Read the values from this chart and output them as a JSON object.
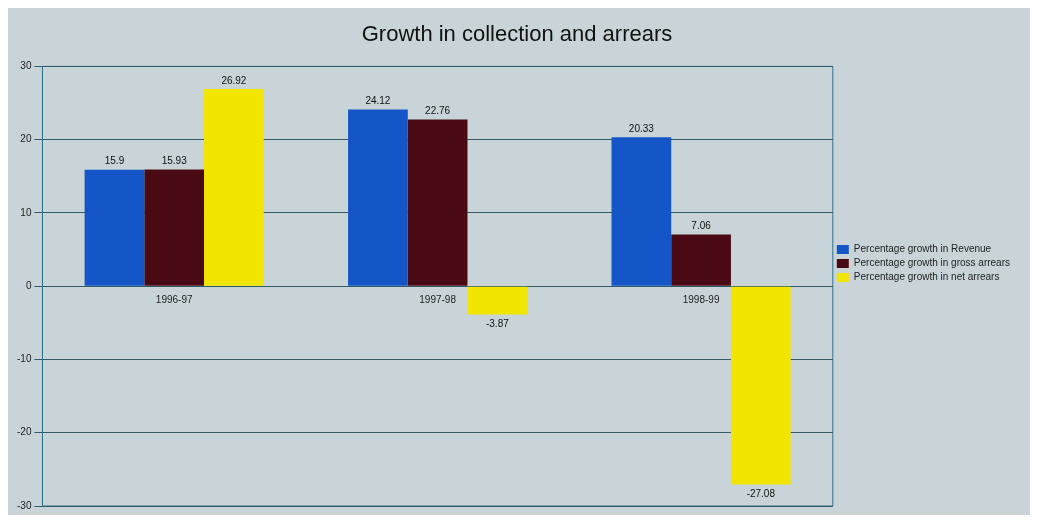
{
  "chart_data": {
    "type": "bar",
    "title": "Growth in collection and arrears",
    "categories": [
      "1996-97",
      "1997-98",
      "1998-99"
    ],
    "series": [
      {
        "name": "Percentage growth in Revenue",
        "color": "#1455c8",
        "values": [
          15.9,
          24.12,
          20.33
        ]
      },
      {
        "name": "Percentage growth in gross arrears",
        "color": "#4a0a14",
        "values": [
          15.93,
          22.76,
          7.06
        ]
      },
      {
        "name": "Percentage growth in net arrears",
        "color": "#f2e600",
        "values": [
          26.92,
          -3.87,
          -27.08
        ]
      }
    ],
    "ylim": [
      -30,
      30
    ],
    "yticks": [
      -30,
      -20,
      -10,
      0,
      10,
      20,
      30
    ],
    "grid": "y",
    "legend": "right",
    "data_labels": true
  }
}
